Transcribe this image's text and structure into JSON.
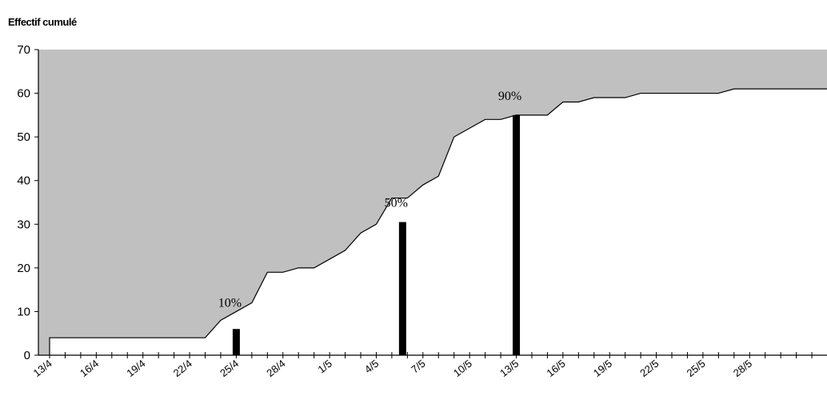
{
  "chart_data": {
    "type": "area",
    "title": "",
    "ylabel": "Effectif cumulé",
    "xlabel": "",
    "ylim": [
      0,
      70
    ],
    "y_ticks": [
      0,
      10,
      20,
      30,
      40,
      50,
      60,
      70
    ],
    "x_start": "13/4",
    "x_ticks": [
      "13/4",
      "16/4",
      "19/4",
      "22/4",
      "25/4",
      "28/4",
      "1/5",
      "4/5",
      "7/5",
      "10/5",
      "13/5",
      "16/5",
      "19/5",
      "22/5",
      "25/5",
      "28/5"
    ],
    "series": [
      {
        "x": [
          "13/4",
          "14/4",
          "15/4",
          "16/4",
          "17/4",
          "18/4",
          "19/4",
          "20/4",
          "21/4",
          "22/4",
          "23/4",
          "24/4",
          "25/4",
          "26/4",
          "27/4",
          "28/4",
          "29/4",
          "30/4",
          "1/5",
          "2/5",
          "3/5",
          "4/5",
          "5/5",
          "6/5",
          "7/5",
          "8/5",
          "9/5",
          "10/5",
          "11/5",
          "12/5",
          "13/5",
          "14/5",
          "15/5",
          "16/5",
          "17/5",
          "18/5",
          "19/5",
          "20/5",
          "21/5",
          "22/5",
          "23/5",
          "24/5",
          "25/5",
          "26/5",
          "27/5",
          "28/5",
          "29/5",
          "30/5",
          "31/5"
        ],
        "values": [
          4,
          4,
          4,
          4,
          4,
          4,
          4,
          4,
          4,
          4,
          4,
          8,
          10,
          12,
          19,
          19,
          20,
          20,
          22,
          24,
          28,
          30,
          36,
          36,
          39,
          41,
          50,
          52,
          54,
          54,
          55,
          55,
          55,
          58,
          58,
          59,
          59,
          59,
          60,
          60,
          60,
          60,
          60,
          60,
          61,
          61,
          61,
          61,
          61
        ]
      }
    ],
    "markers": [
      {
        "label": "10%",
        "x": "25/4",
        "value": 6
      },
      {
        "label": "50%",
        "x": "6/5",
        "value": 30.5
      },
      {
        "label": "90%",
        "x": "13/5",
        "value": 55
      }
    ],
    "colors": {
      "area": "#c0c0c0",
      "line": "#000000",
      "marker": "#000000",
      "background": "#ffffff"
    },
    "grid": false,
    "legend": "none"
  }
}
